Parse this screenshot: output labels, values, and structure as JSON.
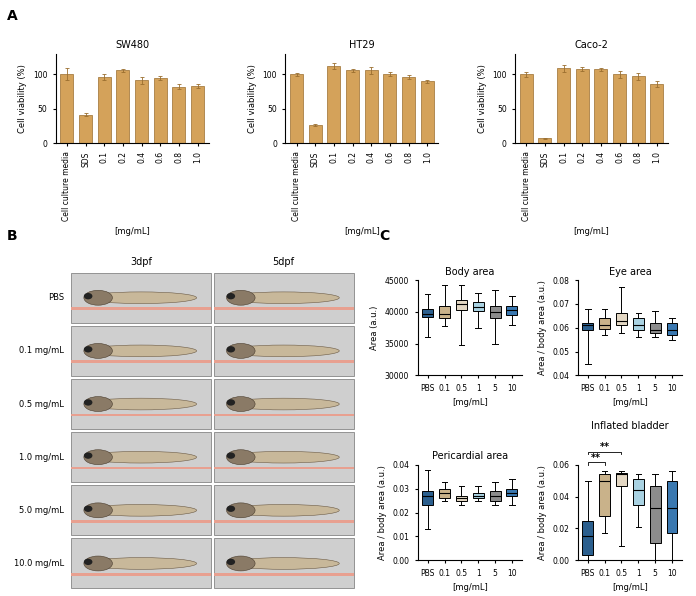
{
  "panel_labels": [
    "A",
    "B",
    "C"
  ],
  "chart_data": [
    {
      "type": "bar",
      "title": "SW480",
      "y_label": "Cell viability (%)",
      "x_label": "[mg/mL]",
      "categories": [
        "Cell culture media",
        "SDS",
        "0.1",
        "0.2",
        "0.4",
        "0.6",
        "0.8",
        "1.0"
      ],
      "values": [
        100,
        41,
        96,
        106,
        91,
        94,
        82,
        83
      ],
      "errors": [
        9,
        2,
        4,
        2,
        5,
        3,
        4,
        3
      ],
      "color": "#d4a25a",
      "ylim": [
        0,
        130
      ],
      "yticks": [
        0,
        50,
        100
      ]
    },
    {
      "type": "bar",
      "title": "HT29",
      "y_label": "Cell viability (%)",
      "x_label": "[mg/mL]",
      "categories": [
        "Cell culture media",
        "SDS",
        "0.1",
        "0.2",
        "0.4",
        "0.6",
        "0.8",
        "1.0"
      ],
      "values": [
        100,
        26,
        112,
        106,
        106,
        100,
        96,
        90
      ],
      "errors": [
        2,
        1,
        5,
        2,
        5,
        3,
        3,
        2
      ],
      "color": "#d4a25a",
      "ylim": [
        0,
        130
      ],
      "yticks": [
        0,
        50,
        100
      ]
    },
    {
      "type": "bar",
      "title": "Caco-2",
      "y_label": "Cell viability (%)",
      "x_label": "[mg/mL]",
      "categories": [
        "Cell culture media",
        "SDS",
        "0.1",
        "0.2",
        "0.4",
        "0.6",
        "0.8",
        "1.0"
      ],
      "values": [
        100,
        7,
        109,
        108,
        107,
        100,
        97,
        86
      ],
      "errors": [
        4,
        1,
        5,
        3,
        2,
        5,
        5,
        4
      ],
      "color": "#d4a25a",
      "ylim": [
        0,
        130
      ],
      "yticks": [
        0,
        50,
        100
      ]
    },
    {
      "type": "box",
      "title": "Body area",
      "y_label": "Area (a.u.)",
      "x_label": "[mg/mL]",
      "categories": [
        "PBS",
        "0.1",
        "0.5",
        "1",
        "5",
        "10"
      ],
      "colors": [
        "#2b5f8e",
        "#c9b28a",
        "#e3d7c3",
        "#a9d2e2",
        "#8c8c8c",
        "#3a78b0"
      ],
      "boxes": [
        {
          "whislo": 36000,
          "q1": 39200,
          "med": 39700,
          "q3": 40400,
          "whishi": 42800
        },
        {
          "whislo": 37800,
          "q1": 39000,
          "med": 39700,
          "q3": 41000,
          "whishi": 44200
        },
        {
          "whislo": 34800,
          "q1": 40300,
          "med": 41200,
          "q3": 41800,
          "whishi": 44200
        },
        {
          "whislo": 37500,
          "q1": 40200,
          "med": 40800,
          "q3": 41500,
          "whishi": 43000
        },
        {
          "whislo": 35000,
          "q1": 39000,
          "med": 40000,
          "q3": 41000,
          "whishi": 43400
        },
        {
          "whislo": 38000,
          "q1": 39500,
          "med": 40300,
          "q3": 41000,
          "whishi": 42500
        }
      ],
      "ylim": [
        30000,
        45000
      ],
      "yticks": [
        30000,
        35000,
        40000,
        45000
      ]
    },
    {
      "type": "box",
      "title": "Eye area",
      "y_label": "Area / body area (a.u.)",
      "x_label": "[mg/mL]",
      "categories": [
        "PBS",
        "0.1",
        "0.5",
        "1",
        "5",
        "10"
      ],
      "colors": [
        "#2b5f8e",
        "#c9b28a",
        "#e3d7c3",
        "#a9d2e2",
        "#8c8c8c",
        "#3a78b0"
      ],
      "boxes": [
        {
          "whislo": 0.045,
          "q1": 0.059,
          "med": 0.061,
          "q3": 0.062,
          "whishi": 0.068
        },
        {
          "whislo": 0.057,
          "q1": 0.0595,
          "med": 0.061,
          "q3": 0.064,
          "whishi": 0.068
        },
        {
          "whislo": 0.058,
          "q1": 0.061,
          "med": 0.063,
          "q3": 0.066,
          "whishi": 0.077
        },
        {
          "whislo": 0.056,
          "q1": 0.059,
          "med": 0.061,
          "q3": 0.064,
          "whishi": 0.066
        },
        {
          "whislo": 0.056,
          "q1": 0.058,
          "med": 0.059,
          "q3": 0.062,
          "whishi": 0.067
        },
        {
          "whislo": 0.055,
          "q1": 0.057,
          "med": 0.059,
          "q3": 0.062,
          "whishi": 0.064
        }
      ],
      "ylim": [
        0.04,
        0.08
      ],
      "yticks": [
        0.04,
        0.05,
        0.06,
        0.07,
        0.08
      ]
    },
    {
      "type": "box",
      "title": "Pericardial area",
      "y_label": "Area / body area (a.u.)",
      "x_label": "[mg/mL]",
      "categories": [
        "PBS",
        "0.1",
        "0.5",
        "1",
        "5",
        "10"
      ],
      "colors": [
        "#2b5f8e",
        "#c9b28a",
        "#e3d7c3",
        "#a9d2e2",
        "#8c8c8c",
        "#3a78b0"
      ],
      "boxes": [
        {
          "whislo": 0.013,
          "q1": 0.023,
          "med": 0.027,
          "q3": 0.029,
          "whishi": 0.038
        },
        {
          "whislo": 0.025,
          "q1": 0.026,
          "med": 0.028,
          "q3": 0.03,
          "whishi": 0.033
        },
        {
          "whislo": 0.023,
          "q1": 0.025,
          "med": 0.026,
          "q3": 0.027,
          "whishi": 0.031
        },
        {
          "whislo": 0.025,
          "q1": 0.026,
          "med": 0.027,
          "q3": 0.028,
          "whishi": 0.031
        },
        {
          "whislo": 0.023,
          "q1": 0.025,
          "med": 0.027,
          "q3": 0.029,
          "whishi": 0.033
        },
        {
          "whislo": 0.023,
          "q1": 0.027,
          "med": 0.028,
          "q3": 0.03,
          "whishi": 0.034
        }
      ],
      "ylim": [
        0,
        0.04
      ],
      "yticks": [
        {
          "value": 0,
          "label": "0.00"
        },
        0.01,
        0.02,
        0.03,
        0.04
      ]
    },
    {
      "type": "box",
      "title": "Inflated bladder",
      "y_label": "Area / body area (a.u.)",
      "x_label": "[mg/mL]",
      "categories": [
        "PBS",
        "0.1",
        "0.5",
        "1",
        "5",
        "10"
      ],
      "colors": [
        "#2b5f8e",
        "#c9b28a",
        "#e3d7c3",
        "#a9d2e2",
        "#8c8c8c",
        "#3a78b0"
      ],
      "boxes": [
        {
          "whislo": 0.0,
          "q1": 0.003,
          "med": 0.015,
          "q3": 0.025,
          "whishi": 0.05
        },
        {
          "whislo": 0.017,
          "q1": 0.028,
          "med": 0.05,
          "q3": 0.054,
          "whishi": 0.056
        },
        {
          "whislo": 0.009,
          "q1": 0.047,
          "med": 0.054,
          "q3": 0.055,
          "whishi": 0.056
        },
        {
          "whislo": 0.021,
          "q1": 0.035,
          "med": 0.044,
          "q3": 0.051,
          "whishi": 0.054
        },
        {
          "whislo": 0.0,
          "q1": 0.011,
          "med": 0.033,
          "q3": 0.047,
          "whishi": 0.054
        },
        {
          "whislo": 0.0,
          "q1": 0.017,
          "med": 0.033,
          "q3": 0.05,
          "whishi": 0.056
        }
      ],
      "ylim": [
        0,
        0.06
      ],
      "yticks": [
        {
          "value": 0,
          "label": "0.00"
        },
        0.02,
        0.04,
        0.06
      ],
      "annotations": [
        {
          "text": "**",
          "between": [
            "PBS",
            "0.1"
          ]
        },
        {
          "text": "**",
          "between": [
            "PBS",
            "0.5"
          ]
        }
      ]
    }
  ],
  "image_panel": {
    "columns": [
      "3dpf",
      "5dpf"
    ],
    "rows": [
      "PBS",
      "0.1 mg/mL",
      "0.5 mg/mL",
      "1.0 mg/mL",
      "5.0 mg/mL",
      "10.0 mg/mL"
    ]
  }
}
